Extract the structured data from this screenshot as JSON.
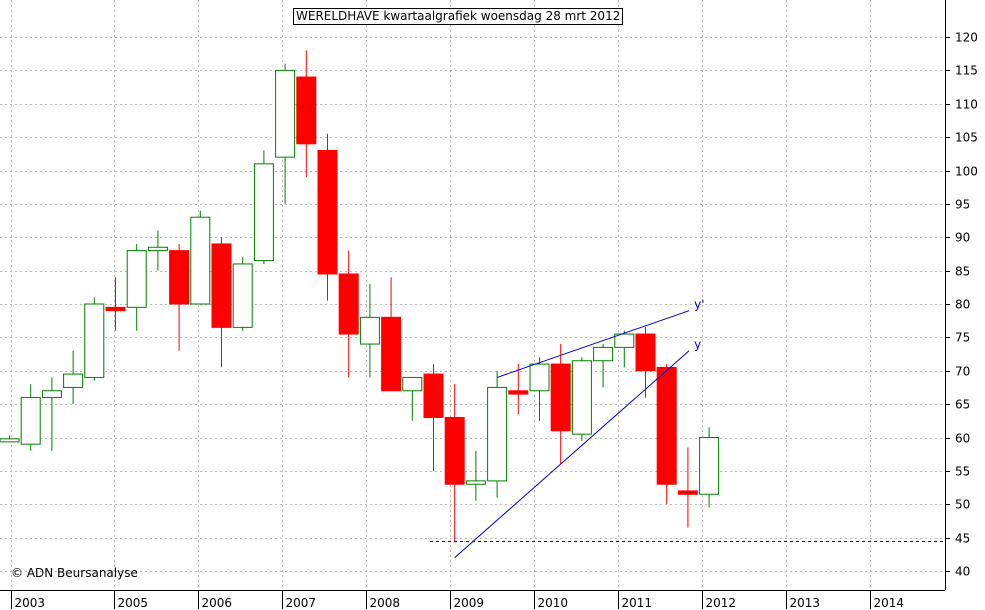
{
  "chart_data": {
    "type": "candlestick",
    "title": "WERELDHAVE kwartaalgrafiek woensdag 28 mrt 2012",
    "copyright": "© ADN Beursanalyse",
    "ylim": [
      38,
      125
    ],
    "y_ticks": [
      40,
      45,
      50,
      55,
      60,
      65,
      70,
      75,
      80,
      85,
      90,
      95,
      100,
      105,
      110,
      115,
      120
    ],
    "x_ticks": [
      "2003",
      "2005",
      "2006",
      "2007",
      "2008",
      "2009",
      "2010",
      "2011",
      "2012",
      "2013",
      "2014"
    ],
    "colors": {
      "up": "#008000",
      "down": "#ff0000",
      "trendline": "#0000cc",
      "grid": "#bbbbbb",
      "axis": "#000000"
    },
    "grid": true,
    "candles": [
      {
        "q": "2002Q4",
        "open": 59.8,
        "high": 60.3,
        "low": 59.4,
        "close": 59.8
      },
      {
        "q": "2003Q1",
        "open": 59.0,
        "high": 68.0,
        "low": 58.0,
        "close": 66.0
      },
      {
        "q": "2003Q2",
        "open": 66.0,
        "high": 69.0,
        "low": 58.0,
        "close": 67.0
      },
      {
        "q": "2003Q3",
        "open": 67.5,
        "high": 73.0,
        "low": 65.0,
        "close": 69.5
      },
      {
        "q": "2003Q4",
        "open": 69.0,
        "high": 81.0,
        "low": 68.5,
        "close": 80.0
      },
      {
        "q": "2004Q1",
        "open": 79.5,
        "high": 84.0,
        "low": 76.0,
        "close": 79.0
      },
      {
        "q": "2004Q2",
        "open": 79.5,
        "high": 89.0,
        "low": 76.0,
        "close": 88.0
      },
      {
        "q": "2004Q3",
        "open": 88.0,
        "high": 91.0,
        "low": 85.0,
        "close": 88.5
      },
      {
        "q": "2004Q4",
        "open": 88.0,
        "high": 89.0,
        "low": 73.0,
        "close": 80.0
      },
      {
        "q": "2005Q1",
        "open": 80.0,
        "high": 94.0,
        "low": 80.0,
        "close": 93.0
      },
      {
        "q": "2005Q2",
        "open": 89.0,
        "high": 90.0,
        "low": 70.5,
        "close": 76.5
      },
      {
        "q": "2005Q3",
        "open": 76.5,
        "high": 87.0,
        "low": 76.0,
        "close": 86.0
      },
      {
        "q": "2005Q4",
        "open": 86.5,
        "high": 103.0,
        "low": 86.0,
        "close": 101.0
      },
      {
        "q": "2006Q1",
        "open": 102.0,
        "high": 116.0,
        "low": 95.0,
        "close": 115.0
      },
      {
        "q": "2006Q2",
        "open": 114.0,
        "high": 118.0,
        "low": 99.0,
        "close": 104.0
      },
      {
        "q": "2006Q3",
        "open": 103.0,
        "high": 105.5,
        "low": 80.5,
        "close": 84.5
      },
      {
        "q": "2006Q4",
        "open": 84.5,
        "high": 88.0,
        "low": 69.0,
        "close": 75.5
      },
      {
        "q": "2007Q1",
        "open": 74.0,
        "high": 83.0,
        "low": 69.0,
        "close": 78.0
      },
      {
        "q": "2007Q2",
        "open": 78.0,
        "high": 84.0,
        "low": 67.0,
        "close": 67.0
      },
      {
        "q": "2007Q3",
        "open": 67.0,
        "high": 69.0,
        "low": 62.5,
        "close": 69.0
      },
      {
        "q": "2007Q4",
        "open": 69.5,
        "high": 71.0,
        "low": 55.0,
        "close": 63.0
      },
      {
        "q": "2008Q1",
        "open": 63.0,
        "high": 68.0,
        "low": 44.5,
        "close": 53.0
      },
      {
        "q": "2008Q2",
        "open": 53.0,
        "high": 58.0,
        "low": 50.5,
        "close": 53.5
      },
      {
        "q": "2008Q3",
        "open": 53.5,
        "high": 70.0,
        "low": 51.0,
        "close": 67.5
      },
      {
        "q": "2008Q4",
        "open": 67.0,
        "high": 71.0,
        "low": 63.5,
        "close": 66.5
      },
      {
        "q": "2009Q1",
        "open": 67.0,
        "high": 72.0,
        "low": 62.5,
        "close": 71.0
      },
      {
        "q": "2009Q2",
        "open": 71.0,
        "high": 74.0,
        "low": 56.0,
        "close": 61.0
      },
      {
        "q": "2009Q3",
        "open": 60.5,
        "high": 72.0,
        "low": 59.5,
        "close": 71.5
      },
      {
        "q": "2009Q4",
        "open": 71.5,
        "high": 74.0,
        "low": 67.5,
        "close": 73.5
      },
      {
        "q": "2010Q1",
        "open": 73.5,
        "high": 76.0,
        "low": 70.5,
        "close": 75.5
      },
      {
        "q": "2010Q2",
        "open": 75.5,
        "high": 76.5,
        "low": 66.0,
        "close": 70.0
      },
      {
        "q": "2010Q3",
        "open": 70.5,
        "high": 71.0,
        "low": 50.0,
        "close": 53.0
      },
      {
        "q": "2010Q4",
        "open": 52.0,
        "high": 58.5,
        "low": 46.5,
        "close": 51.5
      },
      {
        "q": "2011Q1",
        "open": 51.5,
        "high": 61.5,
        "low": 49.5,
        "close": 60.0
      }
    ],
    "trendlines": [
      {
        "label": "y'",
        "x1": "2008Q3",
        "y1": 69.0,
        "x2": "2011Q1",
        "y2": 79.0
      },
      {
        "label": "y",
        "x1": "2008Q1",
        "y1": 42.0,
        "x2": "2011Q1",
        "y2": 73.0
      }
    ],
    "hline": {
      "y": 44.5,
      "style": "dashed"
    }
  }
}
